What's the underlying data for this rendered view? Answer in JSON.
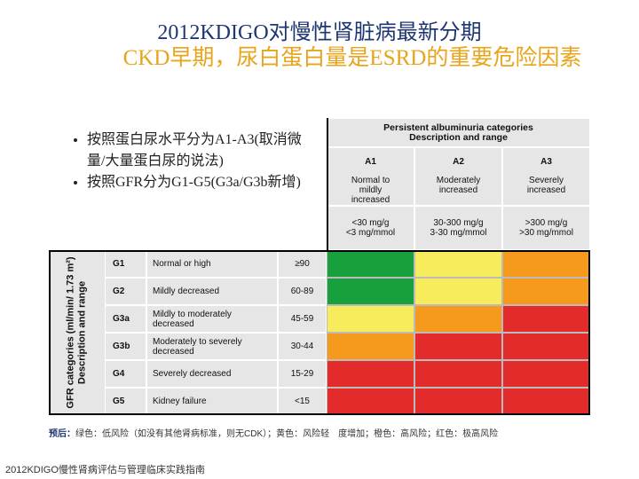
{
  "title": "2012KDIGO对慢性肾脏病最新分期",
  "subtitle": "CKD早期，尿白蛋白量是ESRD的重要危险因素",
  "bullets": [
    "按照蛋白尿水平分为A1-A3(取消微量/大量蛋白尿的说法)",
    "按照GFR分为G1-G5(G3a/G3b新增)"
  ],
  "albuminuria": {
    "header": [
      "Persistent albuminuria categories",
      "Description and range"
    ],
    "columns": [
      {
        "code": "A1",
        "description": [
          "Normal to",
          "mildly",
          "increased"
        ],
        "range": [
          "<30 mg/g",
          "<3 mg/mmol"
        ]
      },
      {
        "code": "A2",
        "description": [
          "Moderately",
          "increased"
        ],
        "range": [
          "30-300 mg/g",
          "3-30 mg/mmol"
        ]
      },
      {
        "code": "A3",
        "description": [
          "Severely",
          "increased"
        ],
        "range": [
          ">300 mg/g",
          ">30 mg/mmol"
        ]
      }
    ]
  },
  "gfr": {
    "axis_label": [
      "GFR categories (ml/min/ 1.73 m²)",
      "Description and range"
    ],
    "rows": [
      {
        "code": "G1",
        "description": "Normal or high",
        "range": "≥90",
        "risk": [
          "#17a03c",
          "#f7ec5c",
          "#f59a1d"
        ]
      },
      {
        "code": "G2",
        "description": "Mildly decreased",
        "range": "60-89",
        "risk": [
          "#17a03c",
          "#f7ec5c",
          "#f59a1d"
        ]
      },
      {
        "code": "G3a",
        "description": "Mildly to moderately decreased",
        "range": "45-59",
        "risk": [
          "#f7ec5c",
          "#f59a1d",
          "#e42b2b"
        ]
      },
      {
        "code": "G3b",
        "description": "Moderately to severely decreased",
        "range": "30-44",
        "risk": [
          "#f59a1d",
          "#e42b2b",
          "#e42b2b"
        ]
      },
      {
        "code": "G4",
        "description": "Severely decreased",
        "range": "15-29",
        "risk": [
          "#e42b2b",
          "#e42b2b",
          "#e42b2b"
        ]
      },
      {
        "code": "G5",
        "description": "Kidney failure",
        "range": "<15",
        "risk": [
          "#e42b2b",
          "#e42b2b",
          "#e42b2b"
        ]
      }
    ]
  },
  "note": {
    "label": "预后：",
    "text": "绿色：低风险（如没有其他肾病标准，则无CDK）；黄色：风险轻　度增加；橙色：高风险；红色：极高风险"
  },
  "footer": "2012KDIGO慢性肾病评估与管理临床实践指南"
}
